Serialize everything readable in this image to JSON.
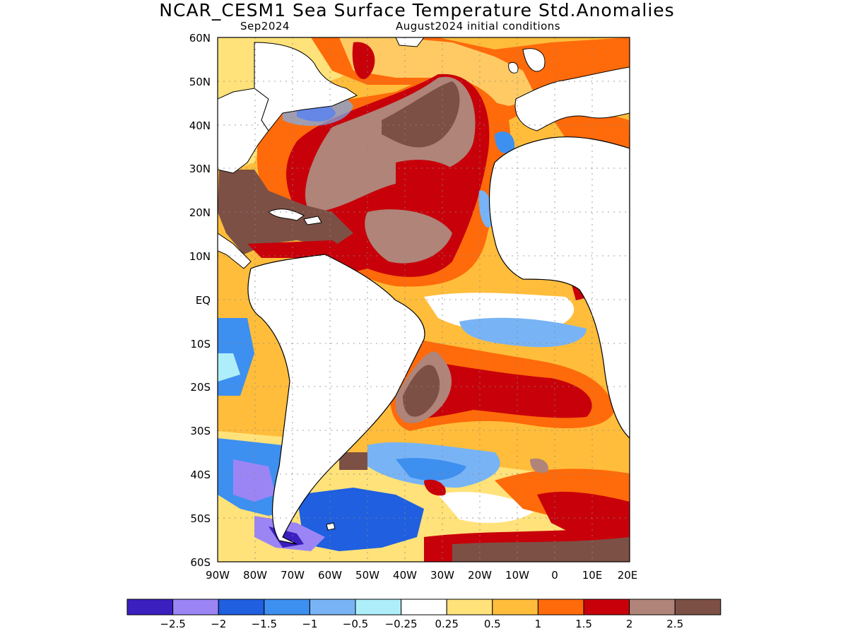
{
  "title": "NCAR_CESM1 Sea Surface Temperature Std.Anomalies",
  "subtitle_left": "Sep2024",
  "subtitle_right": "August2024 initial conditions",
  "lat_labels": [
    "60N",
    "50N",
    "40N",
    "30N",
    "20N",
    "10N",
    "EQ",
    "10S",
    "20S",
    "30S",
    "40S",
    "50S",
    "60S"
  ],
  "lon_labels": [
    "90W",
    "80W",
    "70W",
    "60W",
    "50W",
    "40W",
    "30W",
    "20W",
    "10W",
    "0",
    "10E",
    "20E"
  ],
  "colorbar": {
    "colors": [
      "#3b1fbf",
      "#9b85f5",
      "#1f5fe0",
      "#3d8ff0",
      "#78b4f5",
      "#aeeefa",
      "#ffffff",
      "#ffe27a",
      "#ffbd3b",
      "#ff6a0a",
      "#c8000a",
      "#b08478",
      "#7d5045"
    ],
    "labels": [
      "−2.5",
      "−2",
      "−1.5",
      "−1",
      "−0.5",
      "−0.25",
      "0.25",
      "0.5",
      "1",
      "1.5",
      "2",
      "2.5"
    ]
  }
}
